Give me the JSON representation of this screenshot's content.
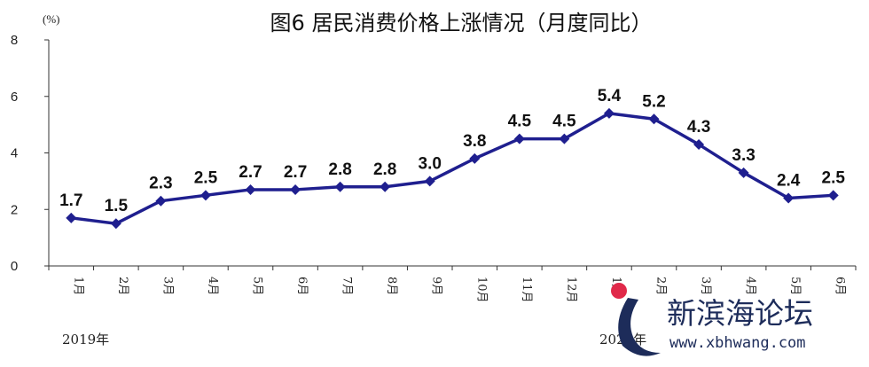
{
  "chart_data": {
    "type": "line",
    "title": "图6   居民消费价格上涨情况（月度同比）",
    "unit_label": "(%)",
    "categories": [
      "1月",
      "2月",
      "3月",
      "4月",
      "5月",
      "6月",
      "7月",
      "8月",
      "9月",
      "10月",
      "11月",
      "12月",
      "1月",
      "2月",
      "3月",
      "4月",
      "5月",
      "6月"
    ],
    "series": [
      {
        "values": [
          1.7,
          1.5,
          2.3,
          2.5,
          2.7,
          2.7,
          2.8,
          2.8,
          3.0,
          3.8,
          4.5,
          4.5,
          5.4,
          5.2,
          4.3,
          3.3,
          2.4,
          2.5
        ],
        "labels": [
          "1.7",
          "1.5",
          "2.3",
          "2.5",
          "2.7",
          "2.7",
          "2.8",
          "2.8",
          "3.0",
          "3.8",
          "4.5",
          "4.5",
          "5.4",
          "5.2",
          "4.3",
          "3.3",
          "2.4",
          "2.5"
        ],
        "color": "#1f1f8f"
      }
    ],
    "year_labels": [
      "2019年",
      "2020年"
    ],
    "ylim": [
      0,
      8
    ],
    "yticks": [
      "0",
      "2",
      "4",
      "6",
      "8"
    ],
    "grid": false,
    "legend": "none"
  },
  "watermark": {
    "text": "新滨海论坛",
    "url": "www.xbhwang.com",
    "accent_color": "#e0294a",
    "brand_color": "#1d2c5a"
  }
}
